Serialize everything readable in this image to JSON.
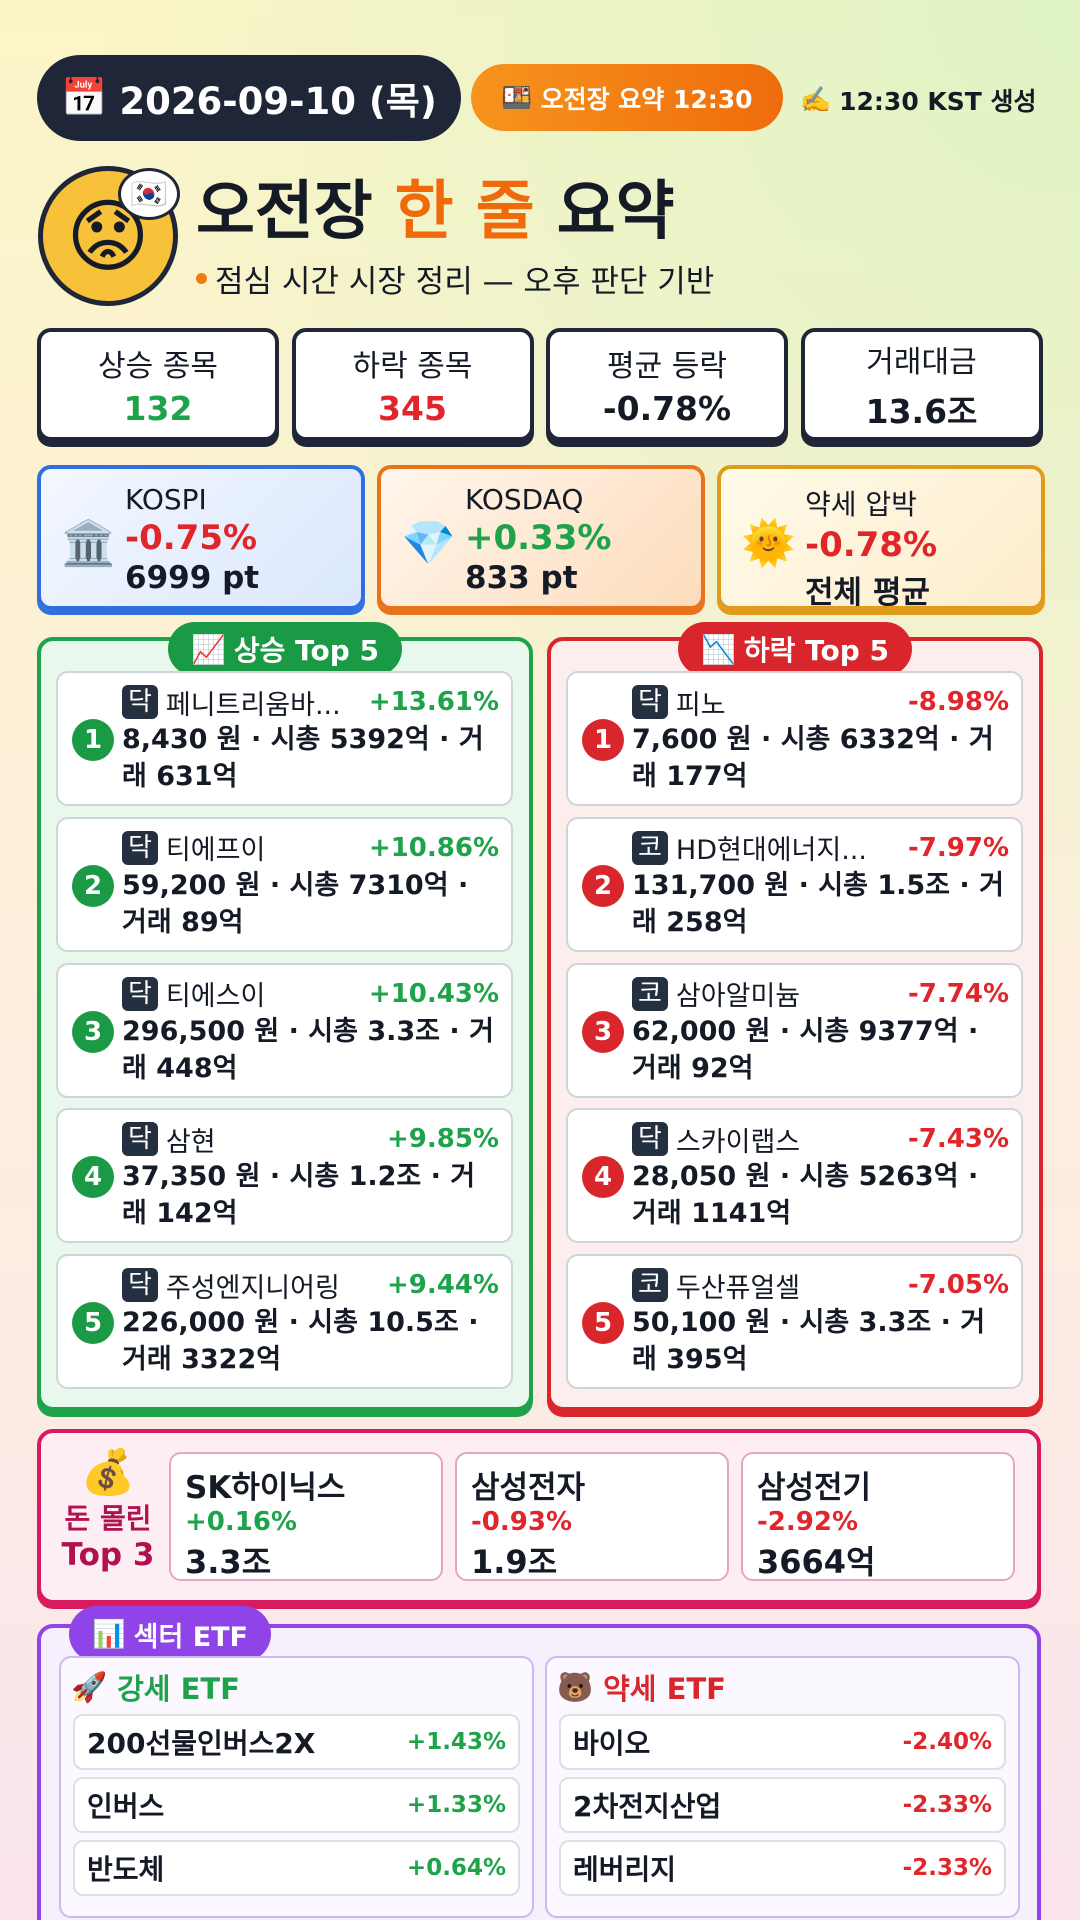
{
  "header": {
    "date_icon": "📅",
    "date": "2026-09-10 (목)",
    "badge_icon": "🍱",
    "badge": "오전장 요약 12:30",
    "generated_icon": "✍️",
    "generated": "12:30 KST 생성"
  },
  "hero": {
    "avatar": "😟",
    "flag": "🇰🇷",
    "title_parts": [
      "오전장",
      "한 줄",
      "요약"
    ],
    "subtitle": "점심 시간 시장 정리 — 오후 판단 기반"
  },
  "stats": [
    {
      "label": "상승 종목",
      "value": "132"
    },
    {
      "label": "하락 종목",
      "value": "345"
    },
    {
      "label": "평균 등락",
      "value": "-0.78%"
    },
    {
      "label": "거래대금",
      "value": "13.6조"
    }
  ],
  "indices": [
    {
      "icon": "🏛️",
      "name": "KOSPI",
      "change": "-0.75%",
      "value": "6999 pt"
    },
    {
      "icon": "💎",
      "name": "KOSDAQ",
      "change": "+0.33%",
      "value": "833 pt"
    },
    {
      "icon": "🌞",
      "name": "약세 압박",
      "change": "-0.78%",
      "value": "전체 평균"
    }
  ],
  "gainers": {
    "icon": "📈",
    "title": "상승 Top 5",
    "items": [
      {
        "rank": "1",
        "market": "닥",
        "name": "페니트리움바...",
        "change": "+13.61%",
        "detail": "8,430 원 · 시총 5392억 · 거래 631억"
      },
      {
        "rank": "2",
        "market": "닥",
        "name": "티에프이",
        "change": "+10.86%",
        "detail": "59,200 원 · 시총 7310억 · 거래 89억"
      },
      {
        "rank": "3",
        "market": "닥",
        "name": "티에스이",
        "change": "+10.43%",
        "detail": "296,500 원 · 시총 3.3조 · 거래 448억"
      },
      {
        "rank": "4",
        "market": "닥",
        "name": "삼현",
        "change": "+9.85%",
        "detail": "37,350 원 · 시총 1.2조 · 거래 142억"
      },
      {
        "rank": "5",
        "market": "닥",
        "name": "주성엔지니어링",
        "change": "+9.44%",
        "detail": "226,000 원 · 시총 10.5조 · 거래 3322억"
      }
    ]
  },
  "losers": {
    "icon": "📉",
    "title": "하락 Top 5",
    "items": [
      {
        "rank": "1",
        "market": "닥",
        "name": "피노",
        "change": "-8.98%",
        "detail": "7,600 원 · 시총 6332억 · 거래 177억"
      },
      {
        "rank": "2",
        "market": "코",
        "name": "HD현대에너지...",
        "change": "-7.97%",
        "detail": "131,700 원 · 시총 1.5조 · 거래 258억"
      },
      {
        "rank": "3",
        "market": "코",
        "name": "삼아알미늄",
        "change": "-7.74%",
        "detail": "62,000 원 · 시총 9377억 · 거래 92억"
      },
      {
        "rank": "4",
        "market": "닥",
        "name": "스카이랩스",
        "change": "-7.43%",
        "detail": "28,050 원 · 시총 5263억 · 거래 1141억"
      },
      {
        "rank": "5",
        "market": "코",
        "name": "두산퓨얼셀",
        "change": "-7.05%",
        "detail": "50,100 원 · 시총 3.3조 · 거래 395억"
      }
    ]
  },
  "money": {
    "icon": "💰",
    "title_lines": [
      "돈 몰린",
      "Top 3"
    ],
    "items": [
      {
        "name": "SK하이닉스",
        "change": "+0.16%",
        "amount": "3.3조"
      },
      {
        "name": "삼성전자",
        "change": "-0.93%",
        "amount": "1.9조"
      },
      {
        "name": "삼성전기",
        "change": "-2.92%",
        "amount": "3664억"
      }
    ]
  },
  "etf": {
    "icon": "📊",
    "title": "섹터 ETF",
    "strong": {
      "icon": "🚀",
      "title": "강세 ETF",
      "items": [
        {
          "name": "200선물인버스2X",
          "change": "+1.43%"
        },
        {
          "name": "인버스",
          "change": "+1.33%"
        },
        {
          "name": "반도체",
          "change": "+0.64%"
        }
      ]
    },
    "weak": {
      "icon": "🐻",
      "title": "약세 ETF",
      "items": [
        {
          "name": "바이오",
          "change": "-2.40%"
        },
        {
          "name": "2차전지산업",
          "change": "-2.33%"
        },
        {
          "name": "레버리지",
          "change": "-2.33%"
        }
      ]
    }
  }
}
